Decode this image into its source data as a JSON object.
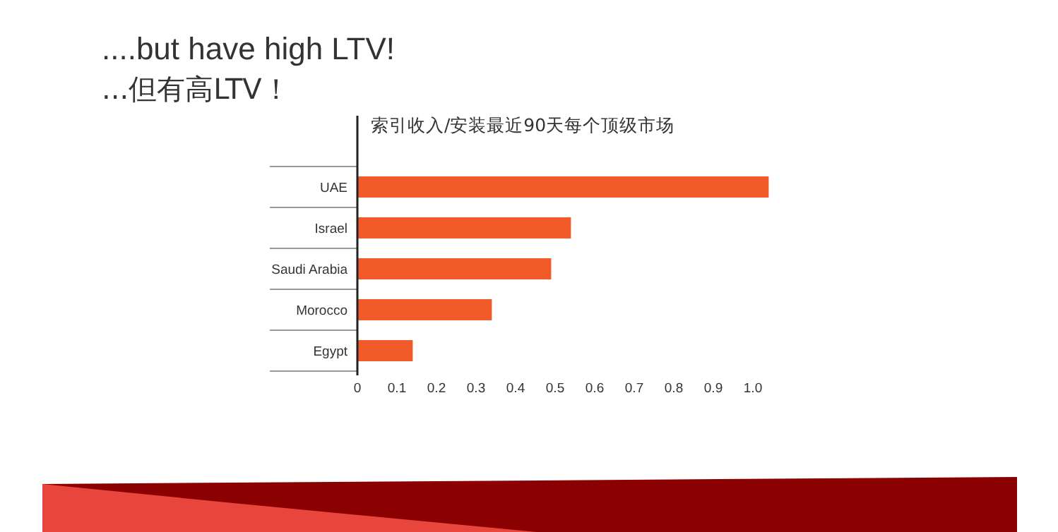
{
  "chart_data": {
    "type": "bar",
    "orientation": "horizontal",
    "title": "....but have high LTV!",
    "subtitle": "...但有高LTV！",
    "xlabel": "索引收入/安装最近90天每个顶级市场",
    "categories": [
      "UAE",
      "Israel",
      "Saudi Arabia",
      "Morocco",
      "Egypt"
    ],
    "values": [
      1.04,
      0.54,
      0.49,
      0.34,
      0.14
    ],
    "color": "#f05a28",
    "xlim": [
      0,
      1.05
    ],
    "xticks": [
      0,
      0.1,
      0.2,
      0.3,
      0.4,
      0.5,
      0.6,
      0.7,
      0.8,
      0.9,
      {
        "value": 1.0,
        "label": "1.0"
      }
    ],
    "grid": false
  }
}
